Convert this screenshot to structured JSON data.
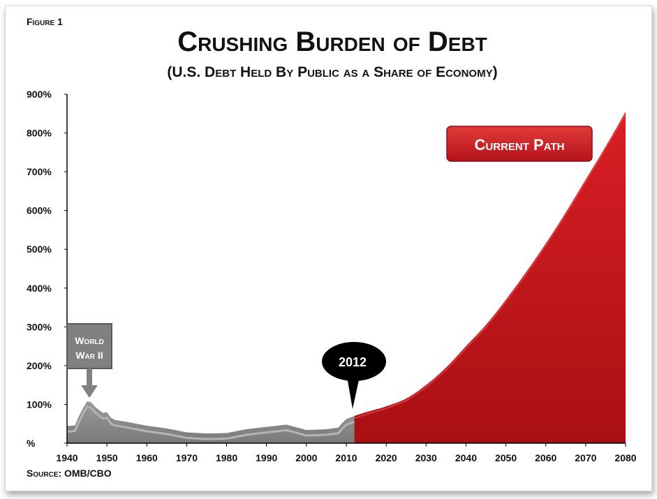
{
  "figure_label": "Figure 1",
  "source_label": "Source: OMB/CBO",
  "colors": {
    "historical_fill": "#8f8f8f",
    "historical_highlight": "#b4b4b4",
    "projection_fill": "#c8161d",
    "projection_highlight": "#e64a4a",
    "callout_gray": "#808080",
    "bubble_black": "#000000"
  },
  "chart_data": {
    "type": "area",
    "title": "Crushing Burden of Debt",
    "subtitle": "(U.S. Debt Held By Public as a Share of Economy)",
    "xlabel": "",
    "ylabel": "",
    "xlim": [
      1940,
      2080
    ],
    "ylim": [
      0,
      900
    ],
    "x_ticks": [
      1940,
      1950,
      1960,
      1970,
      1980,
      1990,
      2000,
      2010,
      2020,
      2030,
      2040,
      2050,
      2060,
      2070,
      2080
    ],
    "y_ticks": [
      0,
      100,
      200,
      300,
      400,
      500,
      600,
      700,
      800,
      900
    ],
    "y_tick_labels": [
      "%",
      "100%",
      "200%",
      "300%",
      "400%",
      "500%",
      "600%",
      "700%",
      "800%",
      "900%"
    ],
    "grid": false,
    "series": [
      {
        "x": [
          1940,
          1942,
          1943,
          1944,
          1945,
          1946,
          1947,
          1948,
          1949,
          1950,
          1951,
          1952,
          1955,
          1960,
          1965,
          1970,
          1975,
          1980,
          1985,
          1990,
          1995,
          2000,
          2005,
          2008,
          2009,
          2010,
          2012
        ],
        "values": [
          44,
          46,
          70,
          90,
          108,
          106,
          94,
          86,
          78,
          80,
          65,
          60,
          55,
          45,
          38,
          28,
          25,
          26,
          36,
          42,
          48,
          34,
          36,
          40,
          52,
          62,
          70
        ]
      },
      {
        "name": "Current Path",
        "x": [
          2012,
          2015,
          2020,
          2025,
          2030,
          2035,
          2040,
          2045,
          2050,
          2055,
          2060,
          2065,
          2070,
          2075,
          2080
        ],
        "values": [
          70,
          80,
          95,
          115,
          150,
          195,
          250,
          305,
          370,
          440,
          515,
          595,
          680,
          765,
          855
        ]
      }
    ],
    "annotations": [
      {
        "label": "World War II",
        "x": 1945,
        "y": 108
      },
      {
        "label": "2012",
        "x": 2012,
        "y": 70
      },
      {
        "label": "Current Path"
      }
    ]
  }
}
